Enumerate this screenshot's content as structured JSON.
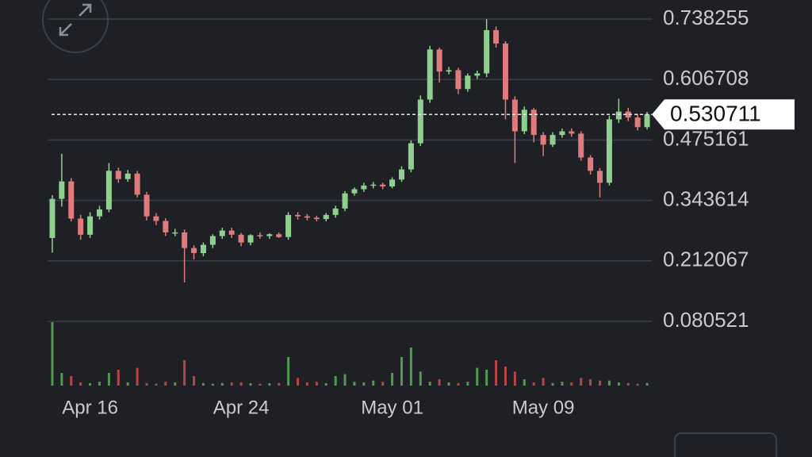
{
  "chart_data": {
    "type": "candlestick",
    "categories": [
      null,
      null,
      null,
      null,
      "Apr 16",
      null,
      null,
      null,
      null,
      null,
      null,
      null,
      null,
      null,
      null,
      null,
      null,
      null,
      null,
      null,
      "Apr 24",
      null,
      null,
      null,
      null,
      null,
      null,
      null,
      null,
      null,
      null,
      null,
      null,
      null,
      null,
      null,
      "May 01",
      null,
      null,
      null,
      null,
      null,
      null,
      null,
      null,
      null,
      null,
      null,
      null,
      null,
      null,
      null,
      "May 09",
      null,
      null,
      null,
      null,
      null,
      null,
      null,
      null,
      null,
      null,
      null
    ],
    "open": [
      0.262,
      0.347,
      0.385,
      0.304,
      0.269,
      0.309,
      0.324,
      0.408,
      0.39,
      0.402,
      0.356,
      0.309,
      0.299,
      0.274,
      0.274,
      0.24,
      0.229,
      0.247,
      0.266,
      0.278,
      0.269,
      0.252,
      0.268,
      0.266,
      0.27,
      0.264,
      0.312,
      0.309,
      0.306,
      0.303,
      0.312,
      0.326,
      0.359,
      0.368,
      0.376,
      0.378,
      0.374,
      0.389,
      0.411,
      0.468,
      0.563,
      0.672,
      0.624,
      0.627,
      0.586,
      0.615,
      0.62,
      0.714,
      0.685,
      0.563,
      0.494,
      0.541,
      0.486,
      0.465,
      0.486,
      0.494,
      0.489,
      0.437,
      0.408,
      0.382,
      0.52,
      0.537,
      0.524,
      0.503
    ],
    "high": [
      0.355,
      0.445,
      0.392,
      0.312,
      0.318,
      0.332,
      0.425,
      0.415,
      0.41,
      0.408,
      0.362,
      0.316,
      0.305,
      0.282,
      0.28,
      0.246,
      0.252,
      0.27,
      0.284,
      0.284,
      0.273,
      0.27,
      0.274,
      0.272,
      0.274,
      0.318,
      0.318,
      0.314,
      0.31,
      0.316,
      0.332,
      0.364,
      0.372,
      0.382,
      0.384,
      0.382,
      0.394,
      0.418,
      0.474,
      0.572,
      0.68,
      0.676,
      0.634,
      0.632,
      0.62,
      0.626,
      0.738,
      0.722,
      0.69,
      0.57,
      0.548,
      0.545,
      0.492,
      0.492,
      0.5,
      0.5,
      0.494,
      0.442,
      0.414,
      0.528,
      0.565,
      0.545,
      0.532,
      0.536
    ],
    "low": [
      0.23,
      0.33,
      0.298,
      0.258,
      0.262,
      0.302,
      0.318,
      0.382,
      0.384,
      0.35,
      0.3,
      0.29,
      0.266,
      0.266,
      0.165,
      0.215,
      0.222,
      0.24,
      0.26,
      0.262,
      0.244,
      0.246,
      0.26,
      0.26,
      0.262,
      0.258,
      0.302,
      0.3,
      0.298,
      0.298,
      0.306,
      0.32,
      0.354,
      0.362,
      0.37,
      0.368,
      0.37,
      0.384,
      0.405,
      0.462,
      0.556,
      0.6,
      0.618,
      0.575,
      0.58,
      0.608,
      0.612,
      0.676,
      0.52,
      0.425,
      0.488,
      0.47,
      0.44,
      0.46,
      0.48,
      0.482,
      0.43,
      0.4,
      0.35,
      0.376,
      0.512,
      0.516,
      0.496,
      0.498
    ],
    "close": [
      0.347,
      0.385,
      0.304,
      0.269,
      0.309,
      0.324,
      0.408,
      0.39,
      0.402,
      0.356,
      0.309,
      0.299,
      0.274,
      0.274,
      0.24,
      0.229,
      0.247,
      0.266,
      0.278,
      0.269,
      0.252,
      0.268,
      0.266,
      0.27,
      0.264,
      0.312,
      0.309,
      0.306,
      0.303,
      0.312,
      0.326,
      0.359,
      0.368,
      0.376,
      0.378,
      0.374,
      0.389,
      0.411,
      0.468,
      0.563,
      0.672,
      0.624,
      0.627,
      0.586,
      0.615,
      0.62,
      0.714,
      0.685,
      0.563,
      0.494,
      0.541,
      0.486,
      0.465,
      0.486,
      0.494,
      0.489,
      0.437,
      0.408,
      0.382,
      0.52,
      0.537,
      0.524,
      0.503,
      0.530711
    ],
    "volume": [
      100,
      20,
      15,
      5,
      4,
      6,
      20,
      25,
      5,
      28,
      4,
      3,
      6,
      5,
      40,
      15,
      4,
      3,
      4,
      5,
      5,
      4,
      3,
      4,
      4,
      45,
      12,
      5,
      6,
      4,
      15,
      18,
      6,
      5,
      8,
      6,
      20,
      45,
      60,
      22,
      6,
      10,
      5,
      4,
      6,
      28,
      25,
      40,
      30,
      22,
      10,
      5,
      12,
      4,
      6,
      5,
      12,
      10,
      8,
      8,
      5,
      4,
      3,
      4
    ],
    "up_color": "#8fd08f",
    "down_color": "#e07b7b",
    "volume_up_color": "#4f9a4f",
    "volume_down_color": "#b84545",
    "ylim": [
      0.080521,
      0.738255
    ],
    "yticks": [
      0.738255,
      0.606708,
      0.475161,
      0.343614,
      0.212067,
      0.080521
    ],
    "volume_ylim": [
      0,
      100
    ],
    "grid": true,
    "last_price": 0.530711
  }
}
